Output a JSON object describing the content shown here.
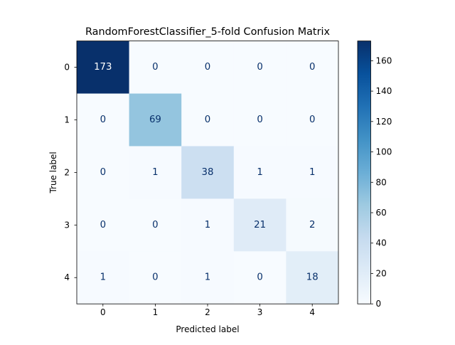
{
  "chart_data": {
    "type": "heatmap",
    "title": "RandomForestClassifier_5-fold Confusion Matrix",
    "xlabel": "Predicted label",
    "ylabel": "True label",
    "x_tick_labels": [
      "0",
      "1",
      "2",
      "3",
      "4"
    ],
    "y_tick_labels": [
      "0",
      "1",
      "2",
      "3",
      "4"
    ],
    "matrix": [
      [
        173,
        0,
        0,
        0,
        0
      ],
      [
        0,
        69,
        0,
        0,
        0
      ],
      [
        0,
        1,
        38,
        1,
        1
      ],
      [
        0,
        0,
        1,
        21,
        2
      ],
      [
        1,
        0,
        1,
        0,
        18
      ]
    ],
    "colormap": "Blues",
    "colormap_stops": [
      "#f7fbff",
      "#deebf7",
      "#c6dbef",
      "#9ecae1",
      "#6baed6",
      "#4292c6",
      "#2171b5",
      "#08519c",
      "#08306b"
    ],
    "vmin": 0,
    "vmax": 173,
    "colorbar_ticks": [
      0,
      20,
      40,
      60,
      80,
      100,
      120,
      140,
      160
    ],
    "colorbar_tick_labels": [
      "0",
      "20",
      "40",
      "60",
      "80",
      "100",
      "120",
      "140",
      "160"
    ],
    "text_color_light": "#ffffff",
    "text_color_dark": "#08306b",
    "grid": false
  }
}
